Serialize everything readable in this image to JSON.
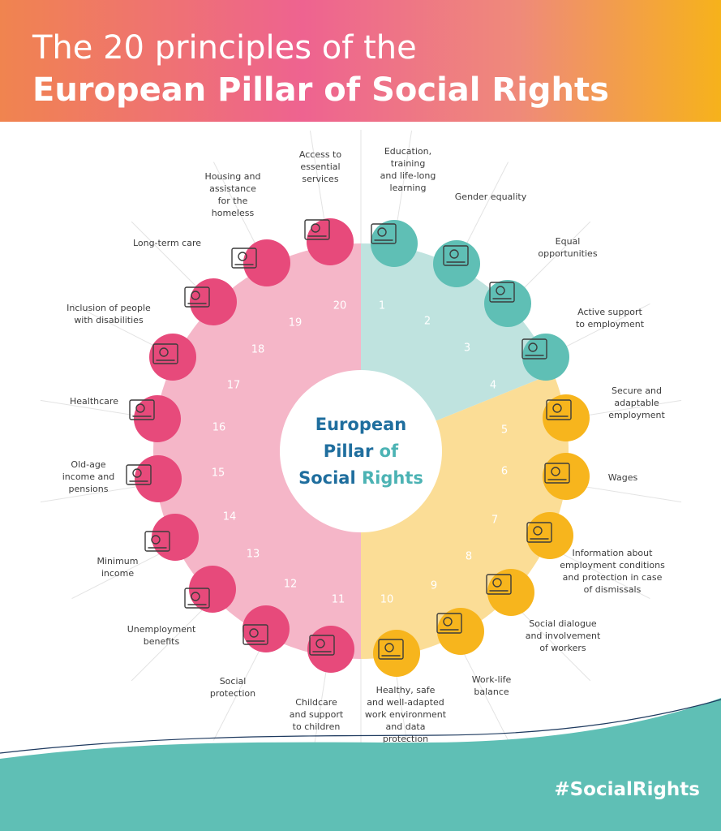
{
  "header": {
    "title_line1": "The 20 principles of the",
    "title_line2": "European Pillar of Social Rights"
  },
  "center": {
    "lines": [
      {
        "parts": [
          {
            "text": "European",
            "color": "#1f6e9e"
          }
        ]
      },
      {
        "parts": [
          {
            "text": "Pillar ",
            "color": "#1f6e9e"
          },
          {
            "text": "of",
            "color": "#4cb3b4"
          }
        ]
      },
      {
        "parts": [
          {
            "text": "Social ",
            "color": "#1f6e9e"
          },
          {
            "text": "Rights",
            "color": "#4cb3b4"
          }
        ]
      }
    ]
  },
  "colors": {
    "teal_sector": "#bfe3df",
    "teal_circle": "#5fbfb5",
    "yellow_sector": "#fbdd96",
    "yellow_circle": "#f7b51d",
    "pink_sector": "#f5b6c8",
    "pink_circle": "#e74a7b",
    "footer_wave": "#5fbfb5"
  },
  "principles": [
    {
      "number": "1",
      "group": "teal",
      "label": [
        "Education,",
        "training",
        "and life-long",
        "learning"
      ],
      "icon": "presentation-screen-graduation-cap-icon"
    },
    {
      "number": "2",
      "group": "teal",
      "label": [
        "Gender equality"
      ],
      "icon": "gender-symbols-icon"
    },
    {
      "number": "3",
      "group": "teal",
      "label": [
        "Equal",
        "opportunities"
      ],
      "icon": "climbing-steps-helping-hand-icon"
    },
    {
      "number": "4",
      "group": "teal",
      "label": [
        "Active support",
        "to employment"
      ],
      "icon": "presentation-board-audience-icon"
    },
    {
      "number": "5",
      "group": "yellow",
      "label": [
        "Secure and",
        "adaptable",
        "employment"
      ],
      "icon": "office-worker-construction-worker-icon"
    },
    {
      "number": "6",
      "group": "yellow",
      "label": [
        "Wages"
      ],
      "icon": "coins-rising-arrow-icon"
    },
    {
      "number": "7",
      "group": "yellow",
      "label": [
        "Information about",
        "employment conditions",
        "and protection in case",
        "of dismissals"
      ],
      "icon": "info-bubble-shield-icon"
    },
    {
      "number": "8",
      "group": "yellow",
      "label": [
        "Social dialogue",
        "and involvement",
        "of workers"
      ],
      "icon": "handshake-icon"
    },
    {
      "number": "9",
      "group": "yellow",
      "label": [
        "Work-life",
        "balance"
      ],
      "icon": "parent-child-briefcase-icon"
    },
    {
      "number": "10",
      "group": "yellow",
      "label": [
        "Healthy, safe",
        "and well-adapted",
        "work environment",
        "and data",
        "protection"
      ],
      "icon": "shield-check-worker-icon"
    },
    {
      "number": "11",
      "group": "pink",
      "label": [
        "Childcare",
        "and support",
        "to children"
      ],
      "icon": "mother-child-icon"
    },
    {
      "number": "12",
      "group": "pink",
      "label": [
        "Social",
        "protection"
      ],
      "icon": "family-protective-hands-icon"
    },
    {
      "number": "13",
      "group": "pink",
      "label": [
        "Unemployment",
        "benefits"
      ],
      "icon": "person-under-umbrella-icon"
    },
    {
      "number": "14",
      "group": "pink",
      "label": [
        "Minimum",
        "income"
      ],
      "icon": "hand-holding-coins-icon"
    },
    {
      "number": "15",
      "group": "pink",
      "label": [
        "Old-age",
        "income and",
        "pensions"
      ],
      "icon": "glasses-document-icon"
    },
    {
      "number": "16",
      "group": "pink",
      "label": [
        "Healthcare"
      ],
      "icon": "medical-bag-icon"
    },
    {
      "number": "17",
      "group": "pink",
      "label": [
        "Inclusion of people",
        "with disabilities"
      ],
      "icon": "wheelchair-desk-icon"
    },
    {
      "number": "18",
      "group": "pink",
      "label": [
        "Long-term care"
      ],
      "icon": "elderly-walker-icon"
    },
    {
      "number": "19",
      "group": "pink",
      "label": [
        "Housing and",
        "assistance",
        "for the",
        "homeless"
      ],
      "icon": "house-bed-icon"
    },
    {
      "number": "20",
      "group": "pink",
      "label": [
        "Access to",
        "essential",
        "services"
      ],
      "icon": "hand-checkmark-icon"
    }
  ],
  "footer": {
    "hashtag": "#SocialRights"
  }
}
